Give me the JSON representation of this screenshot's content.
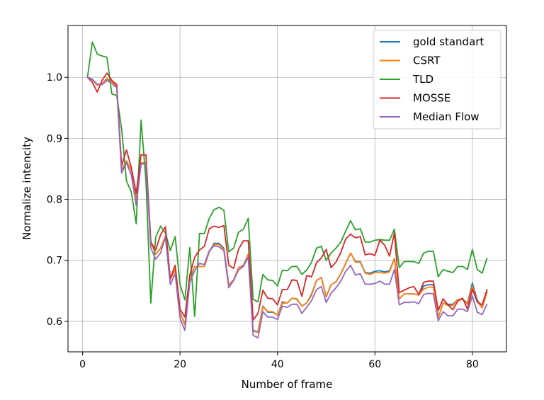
{
  "chart_data": {
    "type": "line",
    "xlabel": "Number of frame",
    "ylabel": "Normalize intencity",
    "xlim": [
      -3,
      87
    ],
    "ylim": [
      0.55,
      1.085
    ],
    "xticks": [
      0,
      20,
      40,
      60,
      80
    ],
    "yticks": [
      0.6,
      0.7,
      0.8,
      0.9,
      1.0
    ],
    "ytick_labels": [
      "0.6",
      "0.7",
      "0.8",
      "0.9",
      "1.0"
    ],
    "grid": true,
    "legend_position": "top-right",
    "x": [
      1,
      2,
      3,
      4,
      5,
      6,
      7,
      8,
      9,
      10,
      11,
      12,
      13,
      14,
      15,
      16,
      17,
      18,
      19,
      20,
      21,
      22,
      23,
      24,
      25,
      26,
      27,
      28,
      29,
      30,
      31,
      32,
      33,
      34,
      35,
      36,
      37,
      38,
      39,
      40,
      41,
      42,
      43,
      44,
      45,
      46,
      47,
      48,
      49,
      50,
      51,
      52,
      53,
      54,
      55,
      56,
      57,
      58,
      59,
      60,
      61,
      62,
      63,
      64,
      65,
      66,
      67,
      68,
      69,
      70,
      71,
      72,
      73,
      74,
      75,
      76,
      77,
      78,
      79,
      80,
      81,
      82,
      83
    ],
    "series": [
      {
        "name": "gold standart",
        "color": "#1f77b4",
        "values": [
          1.0,
          0.997,
          0.988,
          0.99,
          0.998,
          0.993,
          0.986,
          0.848,
          0.863,
          0.848,
          0.8,
          0.86,
          0.86,
          0.73,
          0.71,
          0.72,
          0.74,
          0.668,
          0.685,
          0.615,
          0.595,
          0.67,
          0.69,
          0.69,
          0.69,
          0.714,
          0.728,
          0.728,
          0.72,
          0.66,
          0.668,
          0.688,
          0.692,
          0.71,
          0.585,
          0.583,
          0.625,
          0.615,
          0.615,
          0.61,
          0.632,
          0.63,
          0.638,
          0.636,
          0.625,
          0.63,
          0.645,
          0.667,
          0.672,
          0.64,
          0.66,
          0.665,
          0.678,
          0.695,
          0.712,
          0.698,
          0.698,
          0.68,
          0.679,
          0.682,
          0.683,
          0.681,
          0.683,
          0.703,
          0.637,
          0.645,
          0.645,
          0.645,
          0.643,
          0.658,
          0.66,
          0.66,
          0.606,
          0.63,
          0.628,
          0.628,
          0.636,
          0.636,
          0.63,
          0.663,
          0.635,
          0.622,
          0.648
        ]
      },
      {
        "name": "CSRT",
        "color": "#ff7f0e",
        "values": [
          1.0,
          0.996,
          0.987,
          0.99,
          0.997,
          0.993,
          0.985,
          0.848,
          0.863,
          0.848,
          0.8,
          0.86,
          0.86,
          0.73,
          0.71,
          0.72,
          0.74,
          0.668,
          0.685,
          0.614,
          0.594,
          0.67,
          0.69,
          0.69,
          0.69,
          0.714,
          0.726,
          0.726,
          0.718,
          0.66,
          0.668,
          0.688,
          0.691,
          0.71,
          0.584,
          0.582,
          0.624,
          0.616,
          0.616,
          0.61,
          0.63,
          0.63,
          0.638,
          0.637,
          0.625,
          0.63,
          0.643,
          0.667,
          0.672,
          0.641,
          0.66,
          0.665,
          0.678,
          0.695,
          0.712,
          0.697,
          0.697,
          0.679,
          0.677,
          0.68,
          0.68,
          0.679,
          0.681,
          0.703,
          0.637,
          0.645,
          0.645,
          0.645,
          0.643,
          0.653,
          0.656,
          0.656,
          0.606,
          0.63,
          0.626,
          0.626,
          0.636,
          0.636,
          0.628,
          0.658,
          0.632,
          0.622,
          0.648
        ]
      },
      {
        "name": "TLD",
        "color": "#2ca02c",
        "values": [
          1.0,
          1.058,
          1.038,
          1.035,
          1.033,
          0.973,
          0.97,
          0.916,
          0.83,
          0.812,
          0.76,
          0.93,
          0.83,
          0.63,
          0.738,
          0.756,
          0.745,
          0.716,
          0.739,
          0.66,
          0.635,
          0.721,
          0.608,
          0.744,
          0.744,
          0.769,
          0.783,
          0.787,
          0.782,
          0.714,
          0.72,
          0.746,
          0.751,
          0.769,
          0.636,
          0.632,
          0.677,
          0.668,
          0.667,
          0.658,
          0.684,
          0.683,
          0.69,
          0.69,
          0.677,
          0.684,
          0.697,
          0.72,
          0.723,
          0.7,
          0.712,
          0.72,
          0.73,
          0.748,
          0.765,
          0.75,
          0.752,
          0.73,
          0.73,
          0.733,
          0.734,
          0.733,
          0.733,
          0.751,
          0.688,
          0.698,
          0.698,
          0.698,
          0.695,
          0.712,
          0.715,
          0.715,
          0.673,
          0.685,
          0.682,
          0.68,
          0.69,
          0.69,
          0.685,
          0.718,
          0.685,
          0.679,
          0.703
        ]
      },
      {
        "name": "MOSSE",
        "color": "#d62728",
        "values": [
          1.0,
          0.992,
          0.976,
          0.995,
          1.007,
          0.995,
          0.988,
          0.855,
          0.881,
          0.852,
          0.81,
          0.873,
          0.873,
          0.73,
          0.717,
          0.742,
          0.755,
          0.67,
          0.692,
          0.62,
          0.607,
          0.676,
          0.705,
          0.717,
          0.723,
          0.752,
          0.756,
          0.754,
          0.757,
          0.692,
          0.687,
          0.718,
          0.732,
          0.732,
          0.602,
          0.613,
          0.651,
          0.638,
          0.637,
          0.627,
          0.652,
          0.652,
          0.668,
          0.667,
          0.641,
          0.675,
          0.673,
          0.696,
          0.704,
          0.718,
          0.688,
          0.697,
          0.713,
          0.735,
          0.743,
          0.737,
          0.739,
          0.709,
          0.711,
          0.708,
          0.733,
          0.725,
          0.707,
          0.745,
          0.647,
          0.651,
          0.655,
          0.657,
          0.644,
          0.664,
          0.666,
          0.666,
          0.618,
          0.637,
          0.627,
          0.619,
          0.633,
          0.638,
          0.62,
          0.653,
          0.632,
          0.627,
          0.652
        ]
      },
      {
        "name": "Median Flow",
        "color": "#9467bd",
        "values": [
          1.0,
          0.996,
          0.989,
          0.988,
          0.995,
          0.99,
          0.983,
          0.843,
          0.86,
          0.84,
          0.79,
          0.858,
          0.858,
          0.72,
          0.702,
          0.712,
          0.738,
          0.66,
          0.678,
          0.605,
          0.585,
          0.664,
          0.683,
          0.695,
          0.693,
          0.716,
          0.724,
          0.722,
          0.716,
          0.655,
          0.667,
          0.684,
          0.69,
          0.705,
          0.577,
          0.573,
          0.616,
          0.607,
          0.607,
          0.603,
          0.625,
          0.623,
          0.628,
          0.628,
          0.613,
          0.623,
          0.634,
          0.652,
          0.657,
          0.631,
          0.646,
          0.655,
          0.666,
          0.682,
          0.692,
          0.676,
          0.678,
          0.661,
          0.661,
          0.662,
          0.666,
          0.661,
          0.661,
          0.685,
          0.627,
          0.631,
          0.631,
          0.632,
          0.629,
          0.644,
          0.646,
          0.645,
          0.601,
          0.616,
          0.609,
          0.609,
          0.62,
          0.62,
          0.616,
          0.642,
          0.615,
          0.611,
          0.628
        ]
      }
    ]
  }
}
